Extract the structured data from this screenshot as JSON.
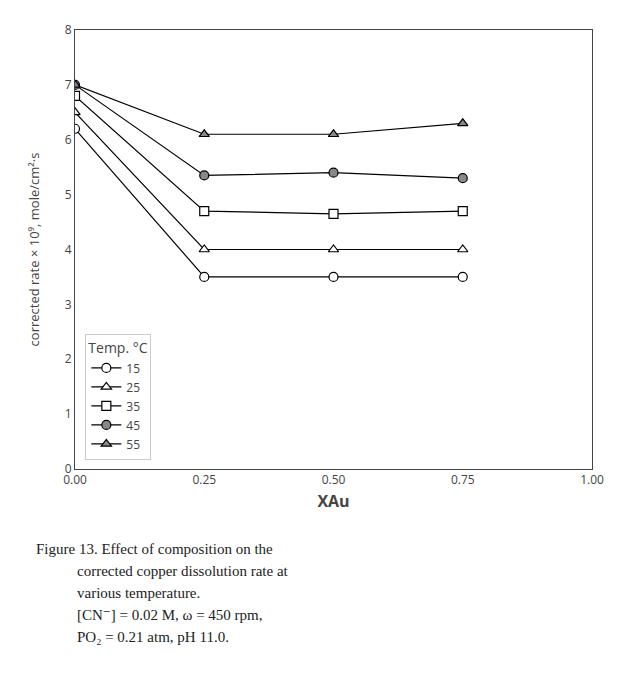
{
  "chart_data": {
    "type": "line",
    "x": [
      0.0,
      0.25,
      0.5,
      0.75
    ],
    "series": [
      {
        "name": "15",
        "marker": "circle",
        "color": "white",
        "values": [
          6.2,
          3.5,
          3.5,
          3.5
        ]
      },
      {
        "name": "25",
        "marker": "triangle",
        "color": "white",
        "values": [
          6.5,
          4.0,
          4.0,
          4.0
        ]
      },
      {
        "name": "35",
        "marker": "square",
        "color": "white",
        "values": [
          6.8,
          4.7,
          4.65,
          4.7
        ]
      },
      {
        "name": "45",
        "marker": "circle",
        "color": "#888888",
        "values": [
          7.0,
          5.35,
          5.4,
          5.3
        ]
      },
      {
        "name": "55",
        "marker": "triangle",
        "color": "#888888",
        "values": [
          7.0,
          6.1,
          6.1,
          6.3
        ]
      }
    ],
    "x_label": "XAu",
    "y_label": "corrected rate × 10⁹, mole/cm²·s",
    "legend_title": "Temp. °C",
    "legend": "lower left",
    "xlim": [
      0.0,
      1.0
    ],
    "ylim": [
      0,
      8
    ],
    "xticks": [
      {
        "value": 0.0,
        "label": "0.00"
      },
      {
        "value": 0.25,
        "label": "0.25"
      },
      {
        "value": 0.5,
        "label": "0.50"
      },
      {
        "value": 0.75,
        "label": "0.75"
      },
      {
        "value": 1.0,
        "label": "1.00"
      }
    ],
    "yticks": [
      0,
      1,
      2,
      3,
      4,
      5,
      6,
      7,
      8
    ],
    "grid": false,
    "annotations": [
      "Figure 13. Effect of composition on the",
      "corrected copper dissolution rate at",
      "various temperature.",
      "[CN⁻] = 0.02 M, ω = 450 rpm,",
      "PO₂ = 0.21 atm, pH 11.0."
    ]
  }
}
